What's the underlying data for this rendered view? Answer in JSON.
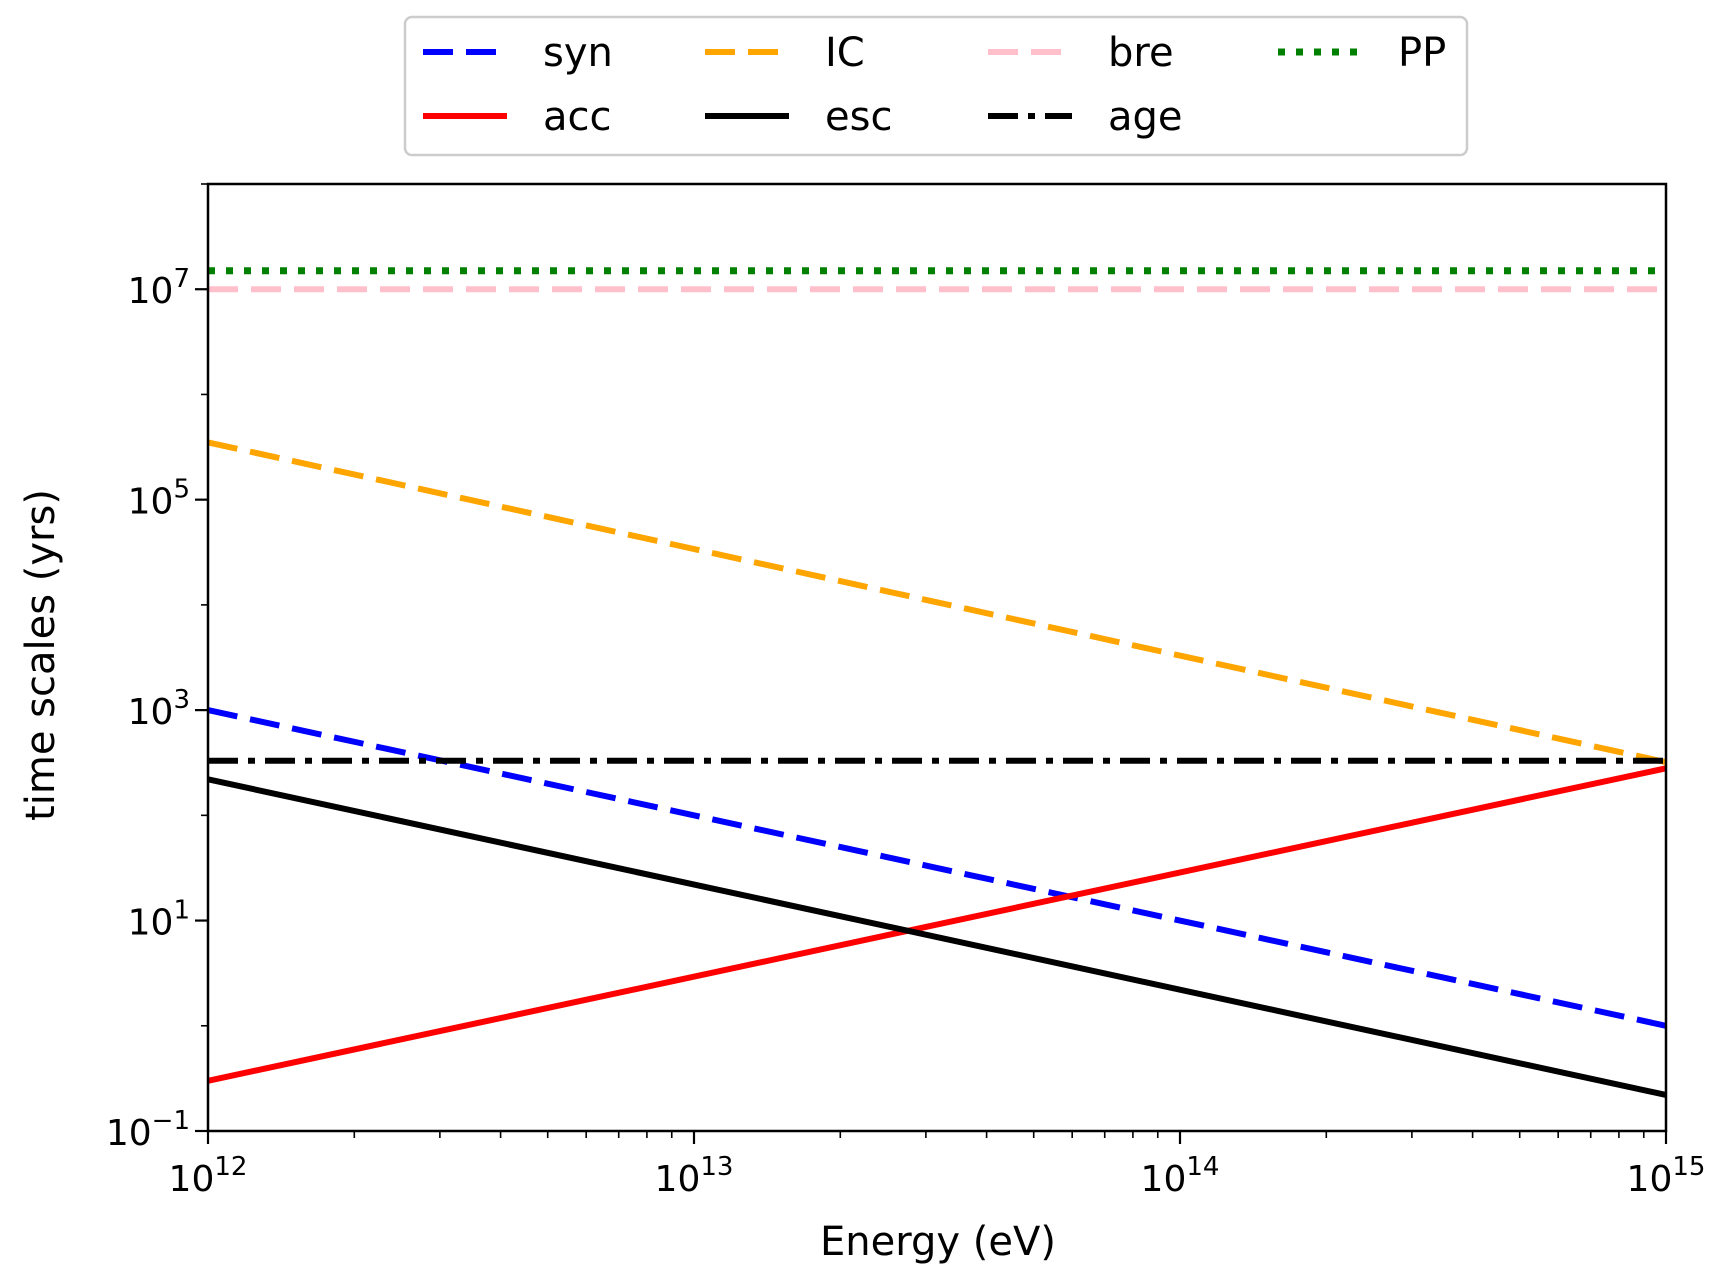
{
  "chart_data": {
    "type": "line",
    "xscale": "log",
    "yscale": "log",
    "xlabel": "Energy (eV)",
    "ylabel": "time scales (yrs)",
    "xlim": [
      1000000000000.0,
      1000000000000000.0
    ],
    "ylim": [
      0.1,
      100000000
    ],
    "x_ticks": [
      {
        "value": 1000000000000.0,
        "base": "10",
        "exp": "12"
      },
      {
        "value": 10000000000000.0,
        "base": "10",
        "exp": "13"
      },
      {
        "value": 100000000000000.0,
        "base": "10",
        "exp": "14"
      },
      {
        "value": 1000000000000000.0,
        "base": "10",
        "exp": "15"
      }
    ],
    "y_ticks": [
      {
        "value": 0.1,
        "base": "10",
        "exp": "−1"
      },
      {
        "value": 10,
        "base": "10",
        "exp": "1"
      },
      {
        "value": 1000,
        "base": "10",
        "exp": "3"
      },
      {
        "value": 100000,
        "base": "10",
        "exp": "5"
      },
      {
        "value": 10000000,
        "base": "10",
        "exp": "7"
      }
    ],
    "legend_position": "top-center, outside plot",
    "series": [
      {
        "name": "syn",
        "color": "#0000ff",
        "style": "dashed",
        "x": [
          1000000000000.0,
          1000000000000000.0
        ],
        "y": [
          1000,
          1
        ]
      },
      {
        "name": "IC",
        "color": "#ffa500",
        "style": "dashed",
        "x": [
          1000000000000.0,
          1000000000000000.0
        ],
        "y": [
          350000,
          320
        ]
      },
      {
        "name": "bre",
        "color": "#ffc0cb",
        "style": "dashed",
        "x": [
          1000000000000.0,
          1000000000000000.0
        ],
        "y": [
          10000000,
          10000000
        ]
      },
      {
        "name": "PP",
        "color": "#008000",
        "style": "dotted",
        "x": [
          1000000000000.0,
          1000000000000000.0
        ],
        "y": [
          15000000,
          15000000
        ]
      },
      {
        "name": "acc",
        "color": "#ff0000",
        "style": "solid",
        "x": [
          1000000000000.0,
          1000000000000000.0
        ],
        "y": [
          0.3,
          280
        ]
      },
      {
        "name": "esc",
        "color": "#000000",
        "style": "solid",
        "x": [
          1000000000000.0,
          1000000000000000.0
        ],
        "y": [
          220,
          0.22
        ]
      },
      {
        "name": "age",
        "color": "#000000",
        "style": "dashdot",
        "x": [
          1000000000000.0,
          1000000000000000.0
        ],
        "y": [
          330,
          330
        ]
      }
    ],
    "legend_order": [
      "syn",
      "IC",
      "bre",
      "PP",
      "acc",
      "esc",
      "age"
    ]
  }
}
